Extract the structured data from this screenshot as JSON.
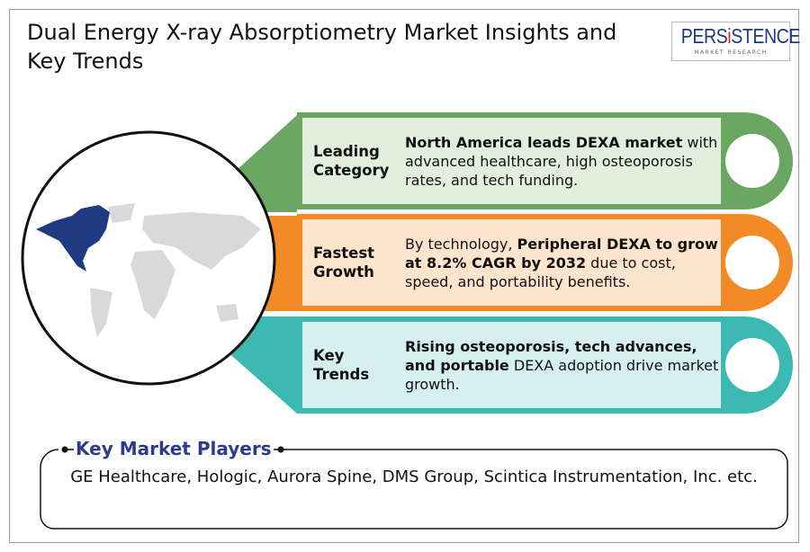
{
  "title": "Dual Energy X-ray Absorptiometry Market Insights and Key Trends",
  "logo": {
    "main_pre": "PERS",
    "main_i": "i",
    "main_post": "STENCE",
    "sub": "MARKET RESEARCH"
  },
  "colors": {
    "green": "#6aa763",
    "green_light": "#e3efdd",
    "orange": "#f28a26",
    "orange_light": "#fde4cd",
    "teal": "#3cb9b2",
    "teal_light": "#d6f0ef",
    "highlight_region": "#1f3a80",
    "map_grey": "#d9d9d9",
    "title_accent": "#2c3b8f"
  },
  "globe": {
    "icon": "world-map-icon",
    "highlighted_region": "North America"
  },
  "insights": [
    {
      "label": "Leading Category",
      "desc_bold": "North America leads DEXA market",
      "desc_rest": " with advanced healthcare, high osteoporosis rates, and tech funding."
    },
    {
      "label": "Fastest Growth",
      "desc_pre": "By technology, ",
      "desc_bold": "Peripheral DEXA to grow at 8.2% CAGR by 2032",
      "desc_rest": " due to cost, speed, and portability benefits."
    },
    {
      "label": "Key Trends",
      "desc_bold": "Rising osteoporosis, tech advances, and portable",
      "desc_rest": " DEXA adoption drive market growth."
    }
  ],
  "players": {
    "title": "Key Market Players",
    "text": "GE Healthcare, Hologic, Aurora Spine, DMS Group, Scintica Instrumentation, Inc. etc."
  }
}
